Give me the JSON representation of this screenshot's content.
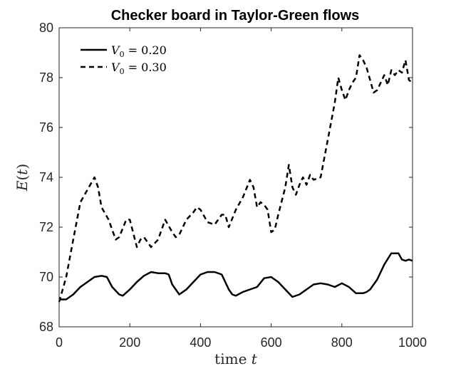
{
  "chart_data": {
    "type": "line",
    "title": "Checker board in Taylor-Green flows",
    "xlabel": "time t",
    "ylabel": "E(t)",
    "xlim": [
      0,
      1000
    ],
    "ylim": [
      68,
      80
    ],
    "xticks": [
      0,
      200,
      400,
      600,
      800,
      1000
    ],
    "yticks": [
      68,
      70,
      72,
      74,
      76,
      78,
      80
    ],
    "grid": false,
    "legend_position": "top-left",
    "series": [
      {
        "name": "V_0 = 0.20",
        "style": "solid",
        "color": "#000000",
        "x": [
          0,
          20,
          40,
          60,
          80,
          100,
          120,
          135,
          150,
          170,
          180,
          200,
          220,
          240,
          260,
          280,
          300,
          310,
          320,
          340,
          360,
          380,
          400,
          420,
          440,
          460,
          480,
          490,
          500,
          520,
          540,
          560,
          580,
          600,
          620,
          640,
          660,
          680,
          700,
          720,
          740,
          760,
          780,
          800,
          820,
          840,
          860,
          870,
          880,
          900,
          920,
          940,
          950,
          960,
          970,
          980,
          990,
          1000
        ],
        "y": [
          69.1,
          69.1,
          69.3,
          69.6,
          69.8,
          70.0,
          70.05,
          70.0,
          69.6,
          69.3,
          69.25,
          69.5,
          69.8,
          70.05,
          70.2,
          70.15,
          70.15,
          70.1,
          69.7,
          69.3,
          69.5,
          69.8,
          70.1,
          70.2,
          70.2,
          70.1,
          69.5,
          69.3,
          69.25,
          69.4,
          69.5,
          69.6,
          69.95,
          70.0,
          69.8,
          69.5,
          69.2,
          69.3,
          69.5,
          69.7,
          69.75,
          69.7,
          69.6,
          69.75,
          69.6,
          69.35,
          69.35,
          69.4,
          69.5,
          69.9,
          70.5,
          70.95,
          70.95,
          70.95,
          70.7,
          70.65,
          70.7,
          70.65
        ]
      },
      {
        "name": "V_0 = 0.30",
        "style": "dashed",
        "color": "#000000",
        "x": [
          0,
          20,
          40,
          60,
          80,
          100,
          110,
          120,
          140,
          160,
          170,
          190,
          200,
          220,
          230,
          240,
          260,
          280,
          300,
          320,
          330,
          340,
          360,
          380,
          390,
          400,
          420,
          440,
          460,
          470,
          480,
          500,
          520,
          540,
          550,
          560,
          570,
          580,
          590,
          600,
          610,
          620,
          640,
          650,
          660,
          670,
          680,
          690,
          700,
          710,
          720,
          740,
          760,
          780,
          790,
          800,
          810,
          820,
          830,
          840,
          850,
          860,
          870,
          880,
          890,
          900,
          910,
          920,
          930,
          940,
          950,
          960,
          970,
          980,
          990,
          1000
        ],
        "y": [
          69.0,
          70.0,
          71.5,
          73.0,
          73.5,
          74.0,
          73.6,
          72.8,
          72.3,
          71.5,
          71.6,
          72.3,
          72.3,
          71.2,
          71.5,
          71.6,
          71.2,
          71.5,
          72.3,
          71.8,
          71.6,
          71.7,
          72.3,
          72.6,
          72.8,
          72.7,
          72.2,
          72.1,
          72.5,
          72.5,
          72.0,
          72.7,
          73.2,
          73.9,
          73.6,
          72.8,
          73.0,
          72.9,
          72.7,
          71.8,
          71.9,
          72.5,
          73.6,
          74.5,
          73.6,
          73.3,
          73.7,
          74.0,
          73.7,
          74.1,
          73.9,
          74.0,
          75.5,
          77.0,
          78.0,
          77.5,
          77.1,
          77.5,
          77.8,
          78.0,
          78.9,
          78.7,
          78.4,
          77.9,
          77.4,
          77.5,
          77.8,
          78.1,
          77.7,
          78.3,
          78.1,
          78.3,
          78.2,
          78.7,
          77.9,
          77.8
        ]
      }
    ]
  }
}
